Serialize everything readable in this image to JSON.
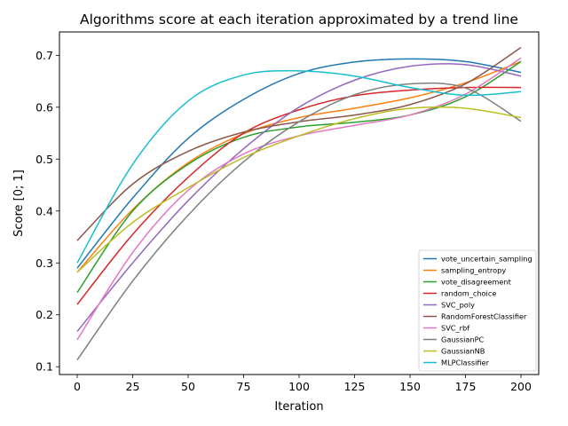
{
  "chart_data": {
    "type": "line",
    "title": "Algorithms score at each iteration approximated by a trend line",
    "xlabel": "Iteration",
    "ylabel": "Score [0; 1]",
    "xlim": [
      -8,
      208
    ],
    "ylim": [
      0.085,
      0.745
    ],
    "xticks": [
      0,
      25,
      50,
      75,
      100,
      125,
      150,
      175,
      200
    ],
    "yticks": [
      0.1,
      0.2,
      0.3,
      0.4,
      0.5,
      0.6,
      0.7
    ],
    "grid": false,
    "legend_position": "lower-right",
    "series": [
      {
        "name": "vote_uncertain_sampling",
        "color": "#1f77b4",
        "x": [
          0,
          25,
          50,
          75,
          100,
          125,
          150,
          175,
          200
        ],
        "y": [
          0.29,
          0.425,
          0.54,
          0.615,
          0.665,
          0.687,
          0.693,
          0.688,
          0.667
        ]
      },
      {
        "name": "sampling_entropy",
        "color": "#ff7f0e",
        "x": [
          0,
          25,
          50,
          75,
          100,
          125,
          150,
          175,
          200
        ],
        "y": [
          0.282,
          0.403,
          0.493,
          0.549,
          0.58,
          0.598,
          0.618,
          0.647,
          0.688
        ]
      },
      {
        "name": "vote_disagreement",
        "color": "#2ca02c",
        "x": [
          0,
          25,
          50,
          75,
          100,
          125,
          150,
          175,
          200
        ],
        "y": [
          0.243,
          0.4,
          0.49,
          0.542,
          0.562,
          0.571,
          0.585,
          0.62,
          0.688
        ]
      },
      {
        "name": "random_choice",
        "color": "#d62728",
        "x": [
          0,
          25,
          50,
          75,
          100,
          125,
          150,
          175,
          200
        ],
        "y": [
          0.22,
          0.355,
          0.465,
          0.55,
          0.595,
          0.622,
          0.633,
          0.638,
          0.638
        ]
      },
      {
        "name": "SVC_poly",
        "color": "#9467bd",
        "x": [
          0,
          25,
          50,
          75,
          100,
          125,
          150,
          175,
          200
        ],
        "y": [
          0.168,
          0.3,
          0.42,
          0.52,
          0.6,
          0.652,
          0.679,
          0.682,
          0.66
        ]
      },
      {
        "name": "RandomForestClassifier",
        "color": "#8c564b",
        "x": [
          0,
          25,
          50,
          75,
          100,
          125,
          150,
          175,
          200
        ],
        "y": [
          0.343,
          0.452,
          0.515,
          0.552,
          0.572,
          0.585,
          0.605,
          0.645,
          0.715
        ]
      },
      {
        "name": "SVC_rbf",
        "color": "#e377c2",
        "x": [
          0,
          25,
          50,
          75,
          100,
          125,
          150,
          175,
          200
        ],
        "y": [
          0.152,
          0.32,
          0.44,
          0.51,
          0.545,
          0.565,
          0.585,
          0.625,
          0.695
        ]
      },
      {
        "name": "GaussianPC",
        "color": "#7f7f7f",
        "x": [
          0,
          25,
          50,
          75,
          100,
          125,
          150,
          175,
          200
        ],
        "y": [
          0.113,
          0.265,
          0.392,
          0.495,
          0.572,
          0.624,
          0.645,
          0.637,
          0.573
        ]
      },
      {
        "name": "GaussianNB",
        "color": "#bcbd22",
        "x": [
          0,
          25,
          50,
          75,
          100,
          125,
          150,
          175,
          200
        ],
        "y": [
          0.282,
          0.378,
          0.445,
          0.503,
          0.545,
          0.578,
          0.598,
          0.598,
          0.58
        ]
      },
      {
        "name": "MLPClassifier",
        "color": "#17becf",
        "x": [
          0,
          25,
          50,
          75,
          100,
          125,
          150,
          175,
          200
        ],
        "y": [
          0.3,
          0.49,
          0.612,
          0.662,
          0.67,
          0.66,
          0.638,
          0.623,
          0.63
        ]
      }
    ]
  }
}
